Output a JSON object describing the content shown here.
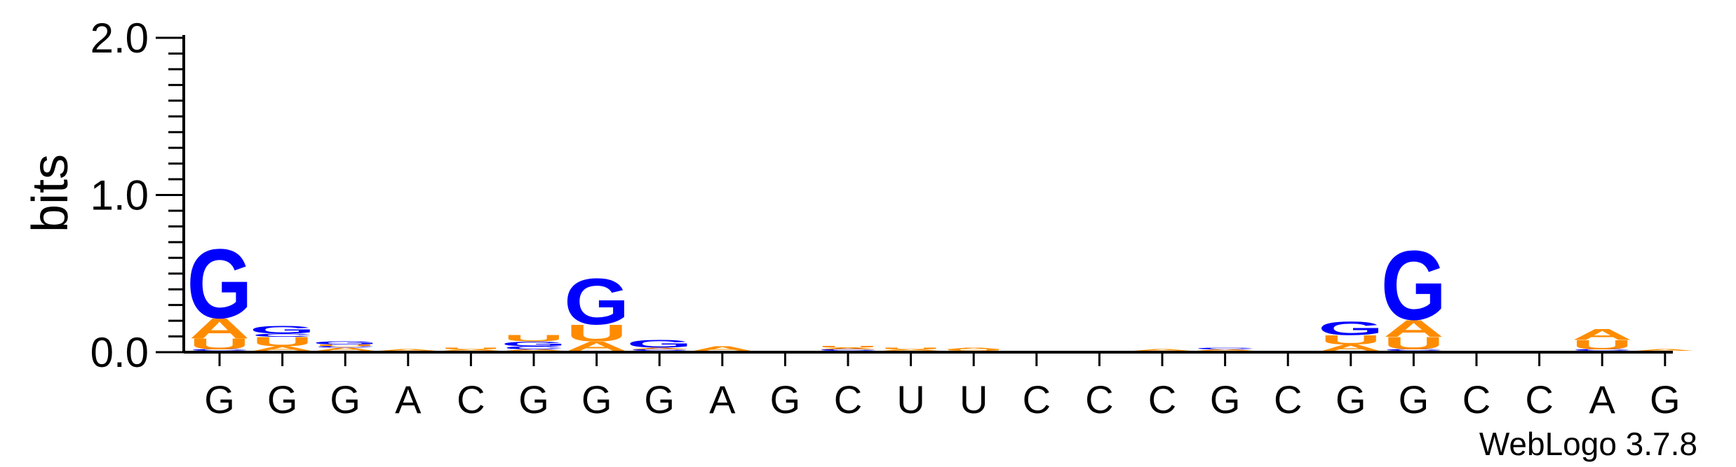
{
  "chart_data": {
    "type": "sequence_logo",
    "ylabel": "bits",
    "ylim": [
      0,
      2.0
    ],
    "yticks": [
      "0.0",
      "1.0",
      "2.0"
    ],
    "credit": "WebLogo 3.7.8",
    "colors": {
      "G": "#0000ff",
      "A": "#ff8c00",
      "U": "#ff8c00",
      "C": "#0000ff"
    },
    "positions": [
      {
        "label": "G",
        "stack": [
          {
            "letter": "C",
            "bits": 0.01
          },
          {
            "letter": "U",
            "bits": 0.07
          },
          {
            "letter": "A",
            "bits": 0.13
          },
          {
            "letter": "G",
            "bits": 0.45
          }
        ]
      },
      {
        "label": "G",
        "stack": [
          {
            "letter": "A",
            "bits": 0.03
          },
          {
            "letter": "U",
            "bits": 0.06
          },
          {
            "letter": "C",
            "bits": 0.02
          },
          {
            "letter": "G",
            "bits": 0.05
          }
        ]
      },
      {
        "label": "G",
        "stack": [
          {
            "letter": "A",
            "bits": 0.02
          },
          {
            "letter": "C",
            "bits": 0.01
          },
          {
            "letter": "U",
            "bits": 0.01
          },
          {
            "letter": "G",
            "bits": 0.02
          }
        ]
      },
      {
        "label": "A",
        "stack": [
          {
            "letter": "A",
            "bits": 0.01
          }
        ]
      },
      {
        "label": "C",
        "stack": [
          {
            "letter": "A",
            "bits": 0.01
          },
          {
            "letter": "U",
            "bits": 0.01
          }
        ]
      },
      {
        "label": "G",
        "stack": [
          {
            "letter": "A",
            "bits": 0.01
          },
          {
            "letter": "C",
            "bits": 0.02
          },
          {
            "letter": "G",
            "bits": 0.03
          },
          {
            "letter": "U",
            "bits": 0.04
          }
        ]
      },
      {
        "label": "G",
        "stack": [
          {
            "letter": "A",
            "bits": 0.06
          },
          {
            "letter": "U",
            "bits": 0.11
          },
          {
            "letter": "G",
            "bits": 0.3
          }
        ]
      },
      {
        "label": "G",
        "stack": [
          {
            "letter": "C",
            "bits": 0.01
          },
          {
            "letter": "A",
            "bits": 0.01
          },
          {
            "letter": "G",
            "bits": 0.05
          }
        ]
      },
      {
        "label": "A",
        "stack": [
          {
            "letter": "A",
            "bits": 0.03
          }
        ]
      },
      {
        "label": "G",
        "stack": []
      },
      {
        "label": "C",
        "stack": [
          {
            "letter": "C",
            "bits": 0.01
          },
          {
            "letter": "A",
            "bits": 0.01
          },
          {
            "letter": "U",
            "bits": 0.01
          }
        ]
      },
      {
        "label": "U",
        "stack": [
          {
            "letter": "A",
            "bits": 0.01
          },
          {
            "letter": "U",
            "bits": 0.01
          }
        ]
      },
      {
        "label": "U",
        "stack": [
          {
            "letter": "U",
            "bits": 0.01
          },
          {
            "letter": "A",
            "bits": 0.01
          }
        ]
      },
      {
        "label": "C",
        "stack": []
      },
      {
        "label": "C",
        "stack": []
      },
      {
        "label": "C",
        "stack": [
          {
            "letter": "A",
            "bits": 0.01
          }
        ]
      },
      {
        "label": "G",
        "stack": [
          {
            "letter": "A",
            "bits": 0.01
          },
          {
            "letter": "C",
            "bits": 0.01
          }
        ]
      },
      {
        "label": "C",
        "stack": []
      },
      {
        "label": "G",
        "stack": [
          {
            "letter": "A",
            "bits": 0.04
          },
          {
            "letter": "U",
            "bits": 0.06
          },
          {
            "letter": "G",
            "bits": 0.09
          }
        ]
      },
      {
        "label": "G",
        "stack": [
          {
            "letter": "C",
            "bits": 0.01
          },
          {
            "letter": "U",
            "bits": 0.08
          },
          {
            "letter": "A",
            "bits": 0.11
          },
          {
            "letter": "G",
            "bits": 0.45
          }
        ]
      },
      {
        "label": "C",
        "stack": []
      },
      {
        "label": "C",
        "stack": []
      },
      {
        "label": "A",
        "stack": [
          {
            "letter": "C",
            "bits": 0.01
          },
          {
            "letter": "U",
            "bits": 0.06
          },
          {
            "letter": "A",
            "bits": 0.07
          }
        ]
      },
      {
        "label": "G",
        "stack": [
          {
            "letter": "A",
            "bits": 0.01
          }
        ]
      }
    ]
  }
}
